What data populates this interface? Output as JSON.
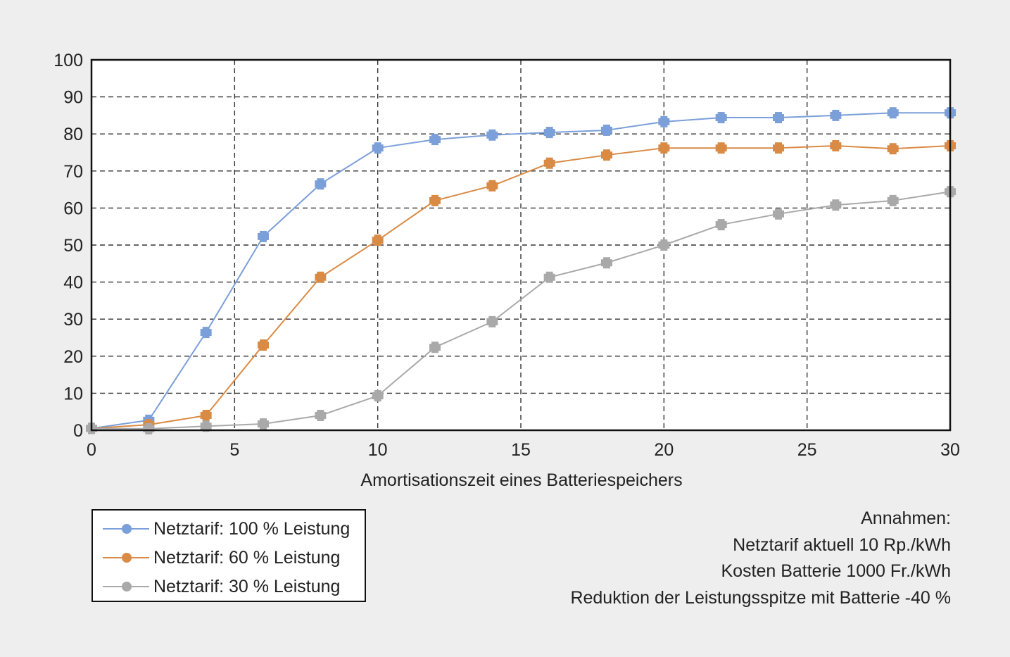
{
  "chart_data": {
    "type": "line",
    "title": "",
    "xlabel": "Amortisationszeit eines Batteriespeichers",
    "ylabel": "",
    "xlim": [
      0,
      30
    ],
    "ylim": [
      0,
      100
    ],
    "x_ticks": [
      "0",
      "5",
      "10",
      "15",
      "20",
      "25",
      "30"
    ],
    "y_ticks": [
      "0",
      "10",
      "20",
      "30",
      "40",
      "50",
      "60",
      "70",
      "80",
      "90",
      "100"
    ],
    "grid": true,
    "grid_style": "dashed",
    "legend_position": "bottom-left",
    "x": [
      0,
      2,
      4,
      6,
      8,
      10,
      12,
      14,
      16,
      18,
      20,
      22,
      24,
      26,
      28,
      30
    ],
    "series": [
      {
        "name": "Netztarif: 100 % Leistung",
        "color": "#7b9fd9",
        "values": [
          0.5,
          2.7,
          26.4,
          52.3,
          66.5,
          76.2,
          78.5,
          79.7,
          80.4,
          81.0,
          83.3,
          84.4,
          84.4,
          85.0,
          85.7,
          85.7
        ]
      },
      {
        "name": "Netztarif: 60 % Leistung",
        "color": "#d98b45",
        "values": [
          0.5,
          1.5,
          4.0,
          23.0,
          41.3,
          51.3,
          62.0,
          66.0,
          72.1,
          74.3,
          76.2,
          76.2,
          76.2,
          76.8,
          76.0,
          76.8
        ]
      },
      {
        "name": "Netztarif: 30 % Leistung",
        "color": "#a9a9a9",
        "values": [
          0.5,
          0.4,
          1.1,
          1.7,
          4.0,
          9.3,
          22.4,
          29.3,
          41.3,
          45.2,
          50.0,
          55.5,
          58.4,
          60.8,
          62.0,
          64.4
        ]
      }
    ]
  },
  "legend": {
    "items": [
      {
        "label": "Netztarif: 100 % Leistung",
        "color": "#7b9fd9"
      },
      {
        "label": "Netztarif: 60 % Leistung",
        "color": "#d98b45"
      },
      {
        "label": "Netztarif: 30 % Leistung",
        "color": "#a9a9a9"
      }
    ]
  },
  "notes": {
    "heading": "Annahmen:",
    "lines": [
      "Netztarif aktuell 10 Rp./kWh",
      "Kosten Batterie 1000 Fr./kWh",
      "Reduktion der Leistungsspitze mit Batterie -40 %"
    ]
  }
}
